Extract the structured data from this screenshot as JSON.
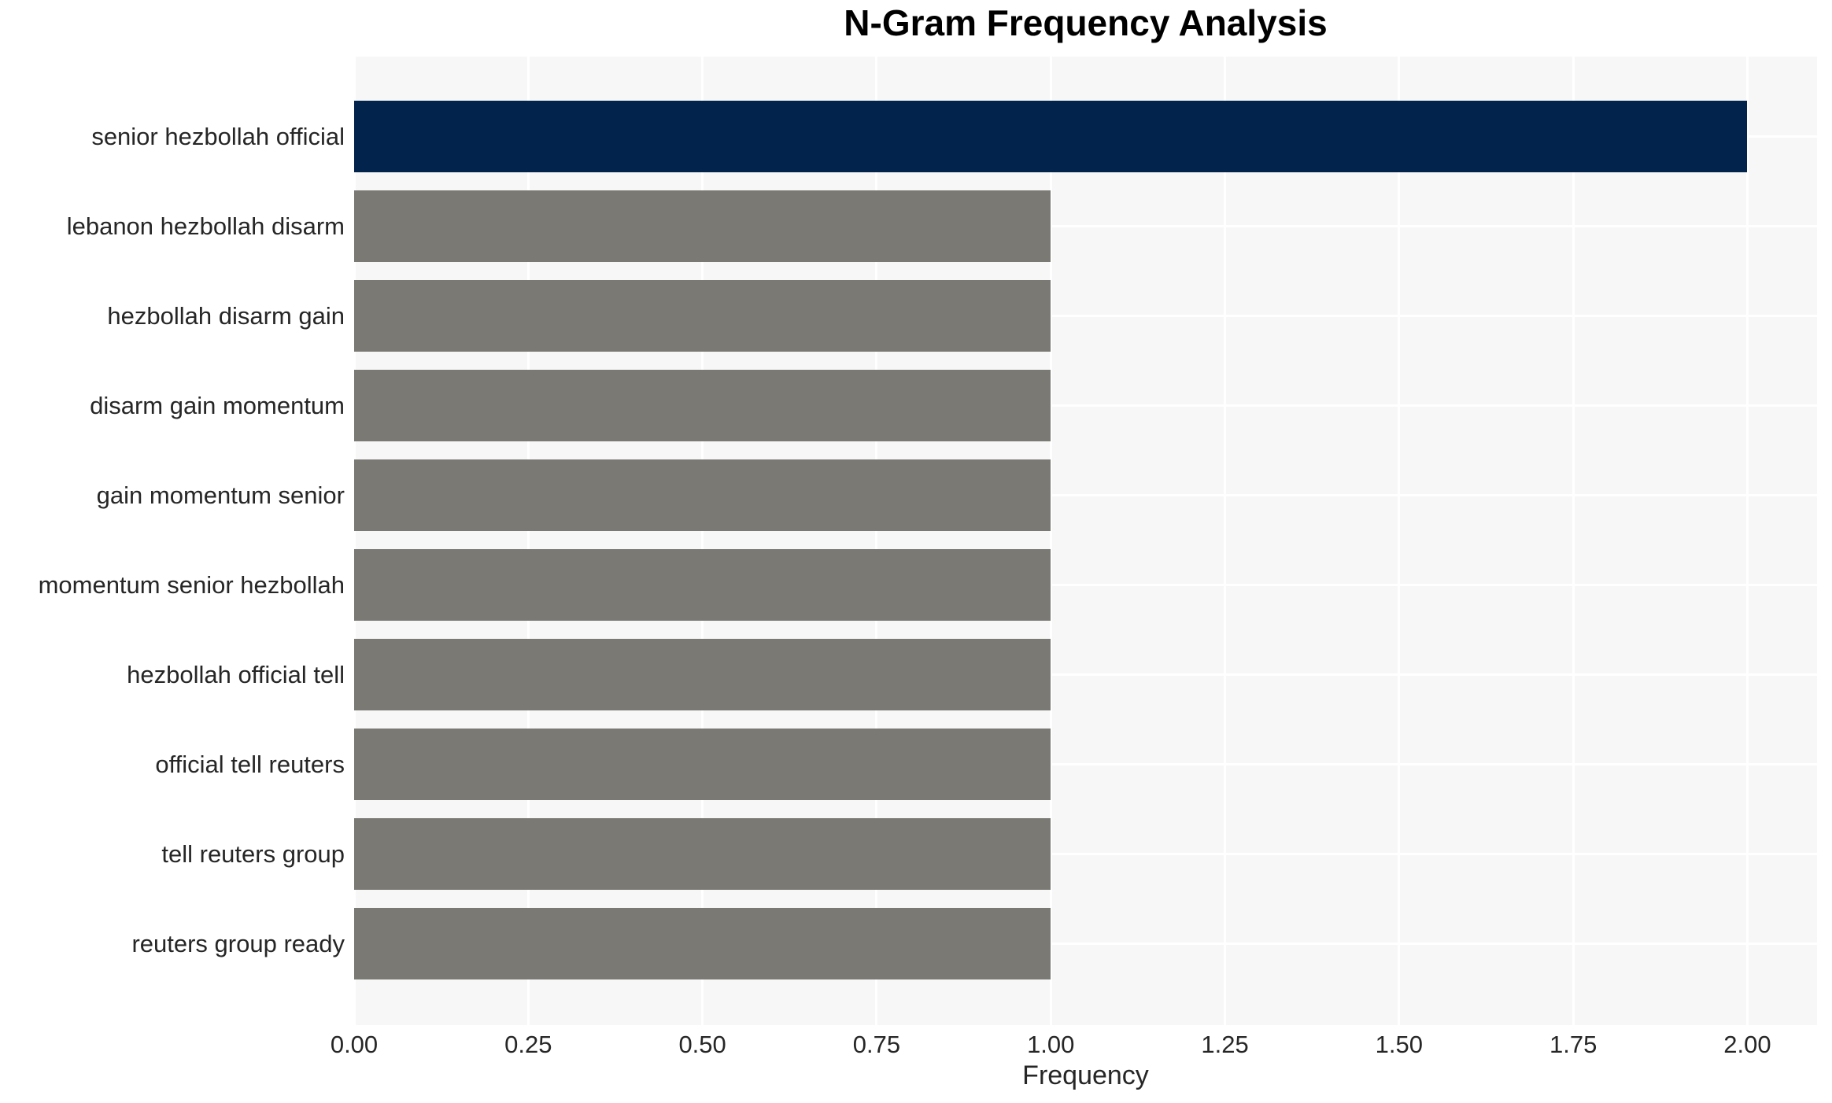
{
  "chart_data": {
    "type": "bar",
    "orientation": "horizontal",
    "title": "N-Gram Frequency Analysis",
    "xlabel": "Frequency",
    "ylabel": "",
    "categories": [
      "senior hezbollah official",
      "lebanon hezbollah disarm",
      "hezbollah disarm gain",
      "disarm gain momentum",
      "gain momentum senior",
      "momentum senior hezbollah",
      "hezbollah official tell",
      "official tell reuters",
      "tell reuters group",
      "reuters group ready"
    ],
    "values": [
      2.0,
      1.0,
      1.0,
      1.0,
      1.0,
      1.0,
      1.0,
      1.0,
      1.0,
      1.0
    ],
    "bar_colors": [
      "#02234c",
      "#7a7974",
      "#7a7974",
      "#7a7974",
      "#7a7974",
      "#7a7974",
      "#7a7974",
      "#7a7974",
      "#7a7974",
      "#7a7974"
    ],
    "xlim": [
      0,
      2.1
    ],
    "x_ticks": [
      0,
      0.25,
      0.5,
      0.75,
      1.0,
      1.25,
      1.5,
      1.75,
      2.0
    ],
    "x_tick_labels": [
      "0.00",
      "0.25",
      "0.50",
      "0.75",
      "1.00",
      "1.25",
      "1.50",
      "1.75",
      "2.00"
    ],
    "grid": true,
    "legend": false,
    "colors": {
      "highlight_bar": "#02234c",
      "default_bar": "#7a7974",
      "plot_background": "#f7f7f7",
      "gridline": "#ffffff",
      "text": "#262626",
      "title": "#000000"
    }
  }
}
